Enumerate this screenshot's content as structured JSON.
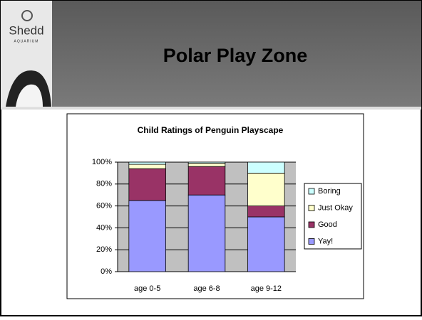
{
  "slide": {
    "title": "Polar Play Zone",
    "logo": [
      "Shedd",
      "AQUARIUM"
    ]
  },
  "chart_data": {
    "type": "stacked_bar",
    "title": "Child Ratings of Penguin Playscape",
    "categories": [
      "age 0-5",
      "age 6-8",
      "age 9-12"
    ],
    "series": [
      {
        "name": "Yay!",
        "color": "#9999ff",
        "values": [
          65,
          70,
          50
        ]
      },
      {
        "name": "Good",
        "color": "#993366",
        "values": [
          29,
          26,
          10
        ]
      },
      {
        "name": "Just Okay",
        "color": "#ffffcc",
        "values": [
          4,
          3,
          30
        ]
      },
      {
        "name": "Boring",
        "color": "#ccffff",
        "values": [
          2,
          1,
          10
        ]
      }
    ],
    "ylim": [
      0,
      100
    ],
    "yticks": [
      {
        "value": 0,
        "label": "0%"
      },
      {
        "value": 20,
        "label": "20%"
      },
      {
        "value": 40,
        "label": "40%"
      },
      {
        "value": 60,
        "label": "60%"
      },
      {
        "value": 80,
        "label": "80%"
      },
      {
        "value": 100,
        "label": "100%"
      }
    ],
    "grid": true,
    "legend": "right"
  }
}
